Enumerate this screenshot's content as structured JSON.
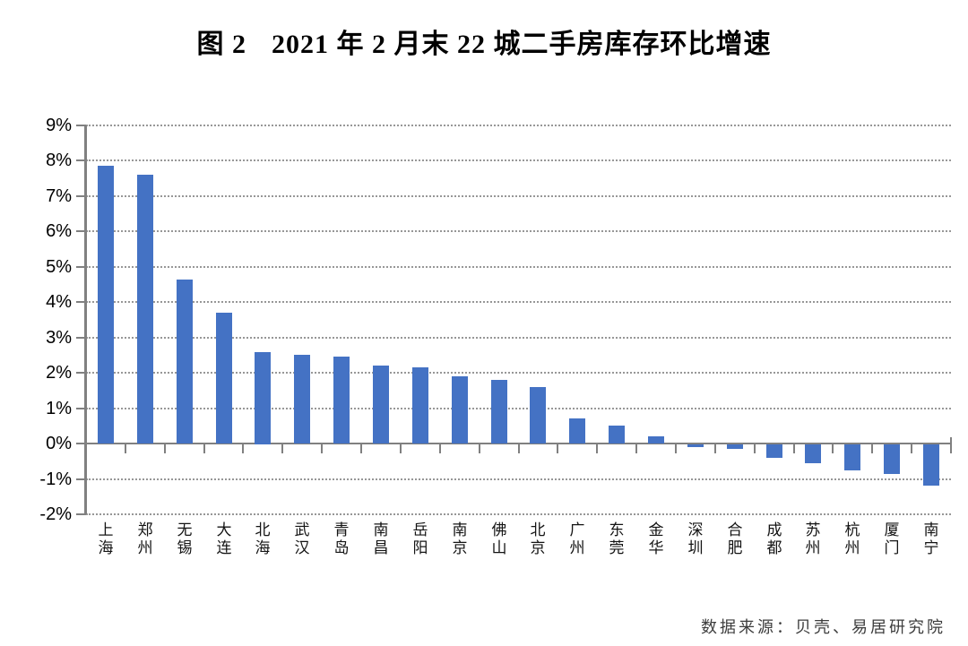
{
  "header": {
    "figure_label": "图 2",
    "title": "2021 年 2 月末 22 城二手房库存环比增速"
  },
  "footer": {
    "source": "数据来源：贝壳、易居研究院"
  },
  "chart_data": {
    "type": "bar",
    "title": "图 2  2021 年 2 月末 22 城二手房库存环比增速",
    "categories": [
      "上海",
      "郑州",
      "无锡",
      "大连",
      "北海",
      "武汉",
      "青岛",
      "南昌",
      "岳阳",
      "南京",
      "佛山",
      "北京",
      "广州",
      "东莞",
      "金华",
      "深圳",
      "合肥",
      "成都",
      "苏州",
      "杭州",
      "厦门",
      "南宁"
    ],
    "values": [
      7.85,
      7.6,
      4.65,
      3.7,
      2.6,
      2.5,
      2.45,
      2.2,
      2.15,
      1.9,
      1.8,
      1.6,
      0.7,
      0.5,
      0.2,
      -0.1,
      -0.15,
      -0.4,
      -0.55,
      -0.75,
      -0.85,
      -1.2
    ],
    "unit": "%",
    "xlabel": "",
    "ylabel": "",
    "ylim": [
      -2,
      9
    ],
    "ytick_step": 1,
    "ytick_labels": [
      "9%",
      "8%",
      "7%",
      "6%",
      "5%",
      "4%",
      "3%",
      "2%",
      "1%",
      "0%",
      "-1%",
      "-2%"
    ],
    "grid": "horizontal-dotted",
    "legend": "none",
    "bar_color": "#4472C4",
    "axis_color": "#808080",
    "source": "数据来源：贝壳、易居研究院"
  }
}
